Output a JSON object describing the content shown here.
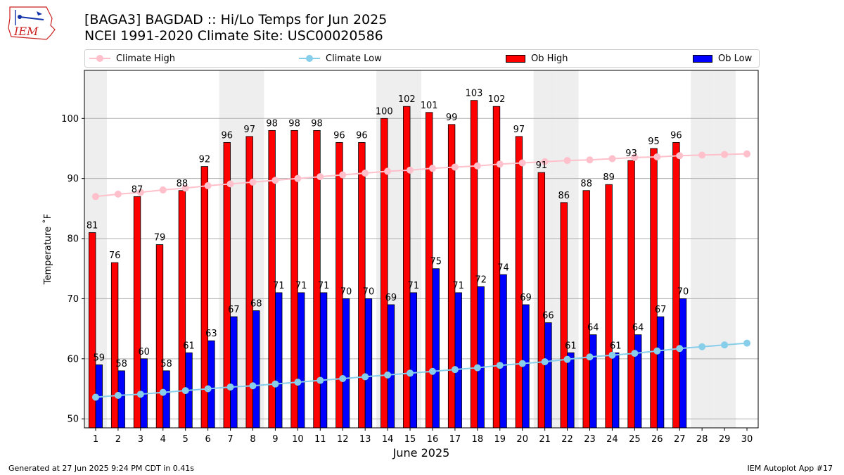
{
  "title": "[BAGA3] BAGDAD :: Hi/Lo Temps for Jun 2025",
  "subtitle": "NCEI 1991-2020 Climate Site: USC00020586",
  "logo_text": "IEM",
  "footer_left": "Generated at 27 Jun 2025 9:24 PM CDT in 0.41s",
  "footer_right": "IEM Autoplot App #17",
  "legend": [
    {
      "label": "Climate High",
      "color": "#ffc0cb",
      "kind": "line"
    },
    {
      "label": "Climate Low",
      "color": "#87ceeb",
      "kind": "line"
    },
    {
      "label": "Ob High",
      "color": "#ff0000",
      "kind": "bar"
    },
    {
      "label": "Ob Low",
      "color": "#0000ff",
      "kind": "bar"
    }
  ],
  "chart_data": {
    "type": "bar",
    "xlabel": "June 2025",
    "ylabel": "Temperature ˚F",
    "x": [
      1,
      2,
      3,
      4,
      5,
      6,
      7,
      8,
      9,
      10,
      11,
      12,
      13,
      14,
      15,
      16,
      17,
      18,
      19,
      20,
      21,
      22,
      23,
      24,
      25,
      26,
      27,
      28,
      29,
      30
    ],
    "xlim": [
      0.5,
      30.5
    ],
    "ylim": [
      48.5,
      108
    ],
    "yticks": [
      50,
      60,
      70,
      80,
      90,
      100
    ],
    "grid": "y",
    "weekend_days": [
      1,
      7,
      8,
      14,
      15,
      21,
      22,
      28,
      29
    ],
    "weekend_color": "#eeeeee",
    "series": [
      {
        "name": "Ob High",
        "type": "bar",
        "color": "#ff0000",
        "values": [
          81,
          76,
          87,
          79,
          88,
          92,
          96,
          97,
          98,
          98,
          98,
          96,
          96,
          100,
          102,
          101,
          99,
          103,
          102,
          97,
          91,
          86,
          88,
          89,
          93,
          95,
          96,
          null,
          null,
          null
        ]
      },
      {
        "name": "Ob Low",
        "type": "bar",
        "color": "#0000ff",
        "values": [
          59,
          58,
          60,
          58,
          61,
          63,
          67,
          68,
          71,
          71,
          71,
          70,
          70,
          69,
          71,
          75,
          71,
          72,
          74,
          69,
          66,
          61,
          64,
          61,
          64,
          67,
          70,
          null,
          null,
          null
        ]
      },
      {
        "name": "Climate High",
        "type": "line",
        "color": "#ffc0cb",
        "values": [
          87.0,
          87.4,
          87.7,
          88.1,
          88.4,
          88.8,
          89.1,
          89.4,
          89.7,
          90.0,
          90.3,
          90.6,
          90.9,
          91.2,
          91.4,
          91.7,
          91.9,
          92.1,
          92.4,
          92.6,
          92.8,
          93.0,
          93.1,
          93.3,
          93.5,
          93.6,
          93.8,
          93.9,
          94.0,
          94.1
        ]
      },
      {
        "name": "Climate Low",
        "type": "line",
        "color": "#87ceeb",
        "values": [
          53.6,
          53.9,
          54.1,
          54.4,
          54.7,
          55.0,
          55.3,
          55.5,
          55.8,
          56.1,
          56.4,
          56.7,
          57.0,
          57.3,
          57.6,
          57.9,
          58.2,
          58.5,
          58.9,
          59.2,
          59.5,
          59.9,
          60.3,
          60.6,
          60.9,
          61.3,
          61.7,
          62.0,
          62.3,
          62.6
        ]
      }
    ]
  }
}
